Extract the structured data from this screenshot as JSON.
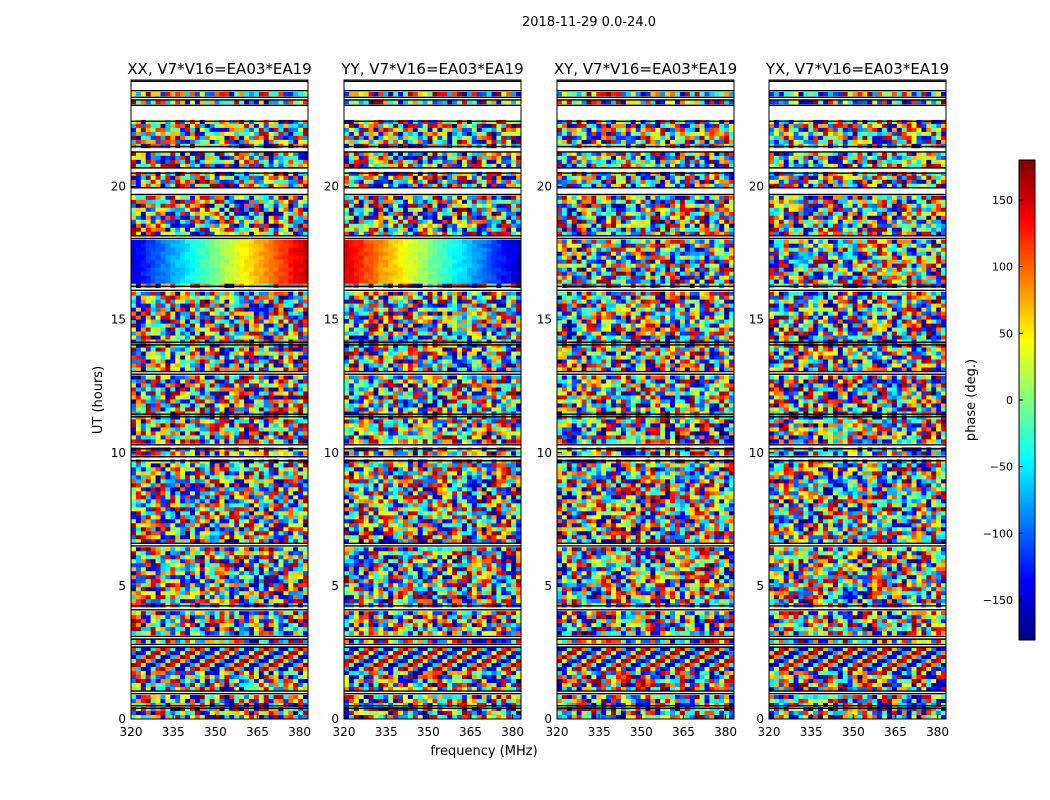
{
  "chart_data": {
    "type": "heatmap",
    "suptitle": "2018-11-29 0.0-24.0",
    "xlabel": "frequency (MHz)",
    "ylabel": "UT (hours)",
    "xlim": [
      320,
      383
    ],
    "ylim": [
      0,
      24
    ],
    "xticks": [
      "320",
      "335",
      "350",
      "365",
      "380"
    ],
    "yticks": [
      "0",
      "5",
      "10",
      "15",
      "20"
    ],
    "panels": [
      {
        "title": "XX, V7*V16=EA03*EA19",
        "pol": "XX"
      },
      {
        "title": "YY, V7*V16=EA03*EA19",
        "pol": "YY"
      },
      {
        "title": "XY, V7*V16=EA03*EA19",
        "pol": "XY"
      },
      {
        "title": "YX, V7*V16=EA03*EA19",
        "pol": "YX"
      }
    ],
    "colorbar": {
      "label": "phase (deg.)",
      "range": [
        -180,
        180
      ],
      "ticks": [
        "150",
        "100",
        "50",
        "0",
        "−50",
        "−100",
        "−150"
      ],
      "colormap": "jet"
    },
    "flagged_gaps_hours": [
      [
        23.6,
        23.95
      ],
      [
        23.25,
        23.35
      ],
      [
        22.45,
        23.05
      ],
      [
        21.3,
        21.5
      ],
      [
        20.5,
        20.7
      ],
      [
        19.7,
        19.95
      ],
      [
        18.05,
        18.15
      ],
      [
        16.1,
        16.25
      ],
      [
        14.05,
        14.15
      ],
      [
        12.95,
        13.05
      ],
      [
        11.35,
        11.45
      ],
      [
        10.15,
        10.3
      ],
      [
        9.7,
        9.85
      ],
      [
        6.5,
        6.6
      ],
      [
        4.1,
        4.25
      ],
      [
        3.0,
        3.1
      ],
      [
        2.7,
        2.8
      ],
      [
        0.95,
        1.05
      ],
      [
        0.4,
        0.5
      ]
    ]
  }
}
